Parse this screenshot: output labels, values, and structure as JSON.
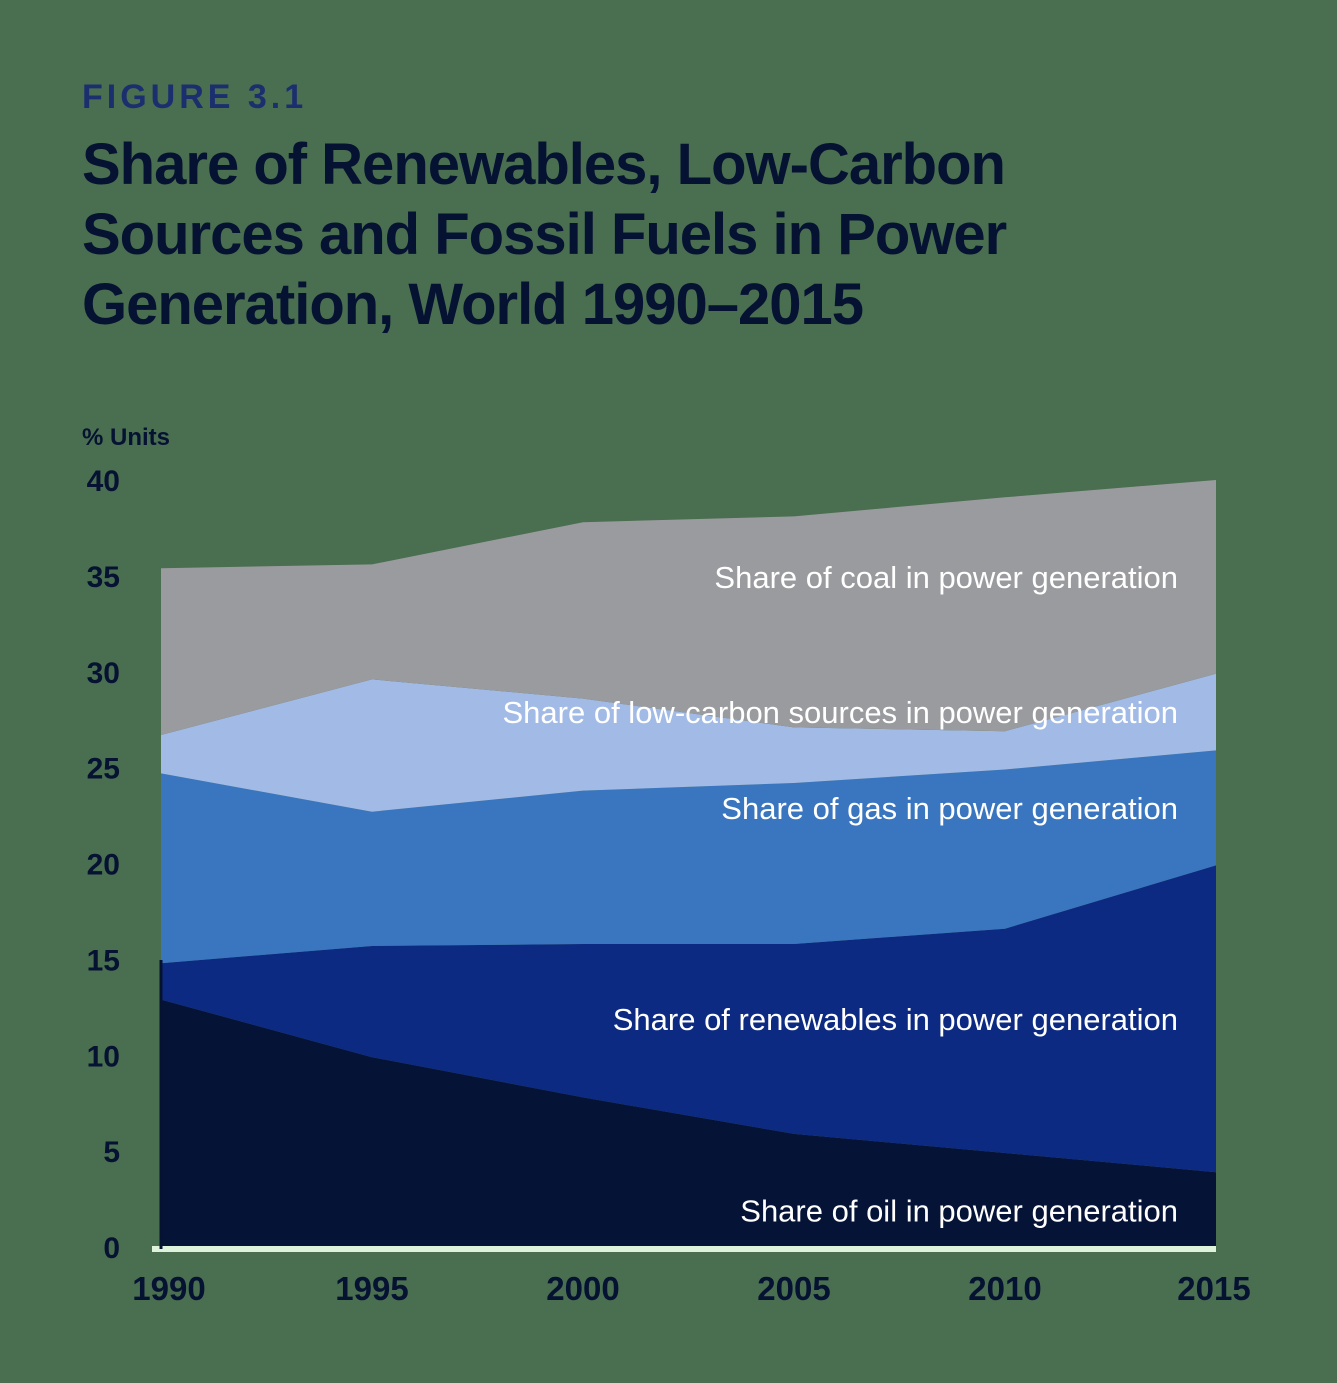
{
  "figure_label": "FIGURE 3.1",
  "chart_data": {
    "type": "area",
    "stacked": true,
    "title": "Share of Renewables, Low-Carbon Sources and Fossil Fuels in Power Generation, World 1990–2015",
    "ylabel": "% Units",
    "x": [
      1990,
      1995,
      2000,
      2005,
      2010,
      2015
    ],
    "x_tick_labels": [
      "1990",
      "1995",
      "2000",
      "2005",
      "2010",
      "2015"
    ],
    "ylim": [
      0,
      40
    ],
    "y_ticks": [
      0,
      5,
      10,
      15,
      20,
      25,
      30,
      35,
      40
    ],
    "grid": false,
    "series": [
      {
        "name": "Share of oil in power generation",
        "color": "#051337",
        "values": [
          12.9,
          9.9,
          7.8,
          5.9,
          4.9,
          3.9
        ]
      },
      {
        "name": "Share of renewables in power generation",
        "color": "#0d2a82",
        "values": [
          1.9,
          5.8,
          8.0,
          9.9,
          11.7,
          16.0
        ]
      },
      {
        "name": "Share of gas in power generation",
        "color": "#3a76bf",
        "values": [
          9.9,
          7.0,
          8.0,
          8.4,
          8.3,
          6.0
        ]
      },
      {
        "name": "Share of low-carbon sources in power generation",
        "color": "#a2bbe6",
        "values": [
          2.0,
          6.9,
          4.8,
          2.9,
          2.0,
          4.0
        ]
      },
      {
        "name": "Share of coal in power generation",
        "color": "#9a9b9e",
        "values": [
          8.7,
          6.0,
          9.2,
          11.0,
          12.2,
          10.1
        ]
      }
    ]
  }
}
